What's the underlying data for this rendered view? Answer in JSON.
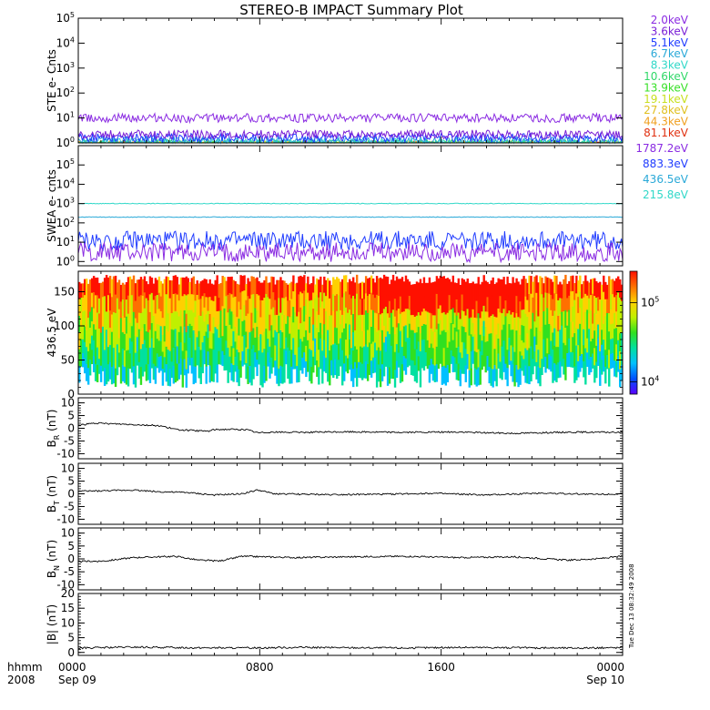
{
  "title": "STEREO-B IMPACT Summary Plot",
  "timestamp": "Tue Dec 13 08:32:49 2008",
  "colors": {
    "ste": [
      "#8a2be2",
      "#7a1fd6",
      "#1f3bff",
      "#2aa9d8",
      "#30d8c8",
      "#30d868",
      "#38e028",
      "#c8e020",
      "#e0c020",
      "#f0a020",
      "#e03010"
    ],
    "swea": [
      "#8a2be2",
      "#1f3bff",
      "#2aa9d8",
      "#30d8c8"
    ]
  },
  "chart_data": [
    {
      "type": "line",
      "id": "ste",
      "ylabel": "STE e- Cnts",
      "y_scale": "log",
      "ylim": [
        1,
        100000
      ],
      "yticks": [
        "10^0",
        "10^1",
        "10^2",
        "10^3",
        "10^4",
        "10^5"
      ],
      "series": [
        {
          "name": "2.0keV",
          "level": 10
        },
        {
          "name": "3.6keV",
          "level": 2.2
        },
        {
          "name": "5.1keV",
          "level": 1.6
        },
        {
          "name": "6.7keV",
          "level": 1.2
        },
        {
          "name": "8.3keV",
          "level": 1.0
        },
        {
          "name": "10.6keV",
          "level": 0.9
        },
        {
          "name": "13.9keV",
          "level": 0.8
        },
        {
          "name": "19.1keV",
          "level": 0.8
        },
        {
          "name": "27.8keV",
          "level": 0.8
        },
        {
          "name": "44.3keV",
          "level": 0.8
        },
        {
          "name": "81.1keV",
          "level": 0.8
        }
      ]
    },
    {
      "type": "line",
      "id": "swea",
      "ylabel": "SWEA e- cnts",
      "y_scale": "log",
      "ylim": [
        0.6,
        1000000
      ],
      "yticks": [
        "10^0",
        "10^1",
        "10^2",
        "10^3",
        "10^4",
        "10^5"
      ],
      "series": [
        {
          "name": "1787.2eV",
          "level": 3
        },
        {
          "name": "883.3eV",
          "level": 12
        },
        {
          "name": "436.5eV",
          "level": 200
        },
        {
          "name": "215.8eV",
          "level": 1000
        }
      ]
    },
    {
      "type": "heatmap",
      "id": "pad",
      "ylabel": "436.5 eV",
      "ylim": [
        0,
        180
      ],
      "yticks": [
        "0",
        "50",
        "100",
        "150"
      ],
      "colorbar": {
        "min": 7000,
        "max": 250000,
        "ticks": [
          "10^4",
          "10^5"
        ]
      }
    },
    {
      "type": "line",
      "id": "br",
      "ylabel": "B",
      "ylabel_sub": "R",
      "ylabel_unit": "(nT)",
      "ylim": [
        -12,
        12
      ],
      "yticks": [
        "-10",
        "-5",
        "0",
        "5",
        "10"
      ],
      "profile": [
        [
          0,
          1.2
        ],
        [
          3,
          2
        ],
        [
          6,
          1.8
        ],
        [
          10,
          1.5
        ],
        [
          15,
          1
        ],
        [
          18,
          -0.5
        ],
        [
          20,
          -0.8
        ],
        [
          22,
          -1
        ],
        [
          24,
          -1.1
        ],
        [
          25,
          -0.5
        ],
        [
          28,
          -0.4
        ],
        [
          31,
          -0.6
        ],
        [
          33,
          -1.8
        ],
        [
          35,
          -1.5
        ],
        [
          40,
          -1.6
        ],
        [
          50,
          -1.4
        ],
        [
          60,
          -1.6
        ],
        [
          70,
          -1.5
        ],
        [
          80,
          -2
        ],
        [
          90,
          -1.5
        ],
        [
          100,
          -1.6
        ]
      ]
    },
    {
      "type": "line",
      "id": "bt",
      "ylabel": "B",
      "ylabel_sub": "T",
      "ylabel_unit": "(nT)",
      "ylim": [
        -12,
        12
      ],
      "yticks": [
        "-10",
        "-5",
        "0",
        "5",
        "10"
      ],
      "profile": [
        [
          0,
          1
        ],
        [
          5,
          1.2
        ],
        [
          10,
          1.5
        ],
        [
          15,
          0.8
        ],
        [
          20,
          0.5
        ],
        [
          25,
          -0.5
        ],
        [
          30,
          0
        ],
        [
          33,
          1.5
        ],
        [
          36,
          0
        ],
        [
          45,
          -0.3
        ],
        [
          55,
          -0.2
        ],
        [
          65,
          0.2
        ],
        [
          75,
          -0.5
        ],
        [
          85,
          0.3
        ],
        [
          95,
          -0.2
        ],
        [
          100,
          0
        ]
      ]
    },
    {
      "type": "line",
      "id": "bn",
      "ylabel": "B",
      "ylabel_sub": "N",
      "ylabel_unit": "(nT)",
      "ylim": [
        -12,
        12
      ],
      "yticks": [
        "-10",
        "-5",
        "0",
        "5",
        "10"
      ],
      "profile": [
        [
          0,
          -1
        ],
        [
          5,
          -0.8
        ],
        [
          10,
          0.5
        ],
        [
          18,
          1
        ],
        [
          22,
          -0.5
        ],
        [
          26,
          -0.8
        ],
        [
          30,
          1
        ],
        [
          40,
          0.5
        ],
        [
          50,
          0.8
        ],
        [
          60,
          1
        ],
        [
          70,
          0.5
        ],
        [
          80,
          0.8
        ],
        [
          90,
          -0.5
        ],
        [
          95,
          0
        ],
        [
          100,
          1
        ]
      ]
    },
    {
      "type": "line",
      "id": "bmag",
      "ylabel": "|B| (nT)",
      "ylim": [
        -1,
        20
      ],
      "yticks": [
        "0",
        "5",
        "10",
        "15",
        "20"
      ],
      "profile": [
        [
          0,
          1.5
        ],
        [
          10,
          1.8
        ],
        [
          20,
          1.6
        ],
        [
          30,
          1.5
        ],
        [
          40,
          1.7
        ],
        [
          50,
          1.6
        ],
        [
          60,
          1.5
        ],
        [
          70,
          1.7
        ],
        [
          80,
          1.6
        ],
        [
          90,
          1.5
        ],
        [
          100,
          1.6
        ]
      ]
    }
  ],
  "xaxis": {
    "label_top": "hhmm",
    "label_bottom": "2008",
    "ticks": [
      {
        "pos": 0,
        "top": "0000",
        "bottom": "Sep 09"
      },
      {
        "pos": 33.33,
        "top": "0800",
        "bottom": ""
      },
      {
        "pos": 66.67,
        "top": "1600",
        "bottom": ""
      },
      {
        "pos": 100,
        "top": "0000",
        "bottom": "Sep 10"
      }
    ]
  }
}
